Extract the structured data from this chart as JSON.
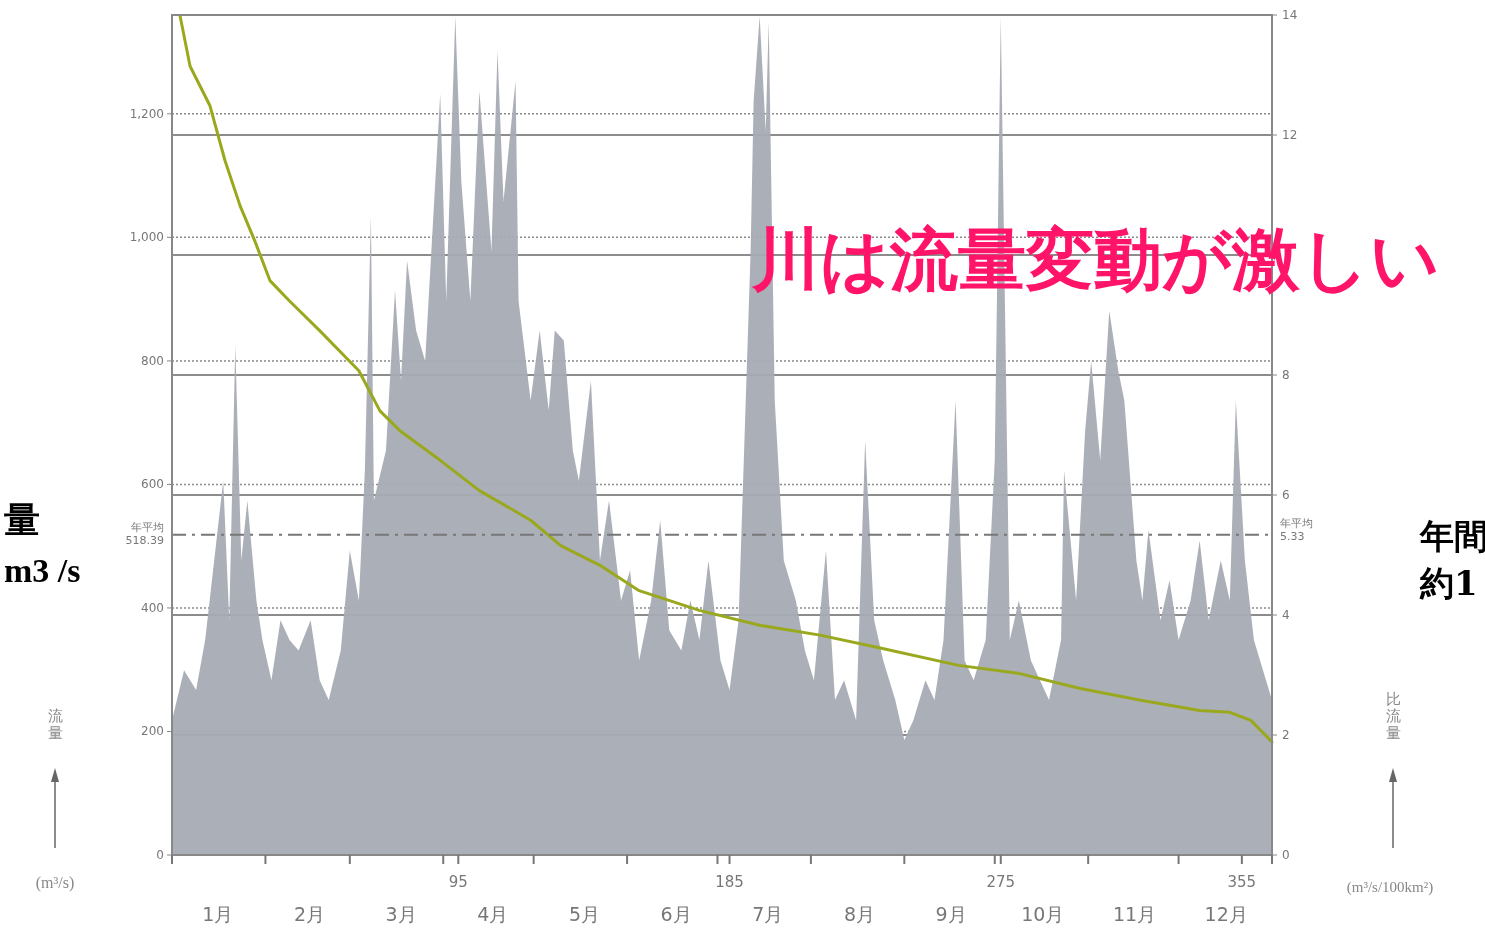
{
  "chart_data": {
    "type": "area",
    "title": "川は流量変動が激しい",
    "ylabel": "流量",
    "annotations": [
      "(m³/s)",
      "(m³/s/100km²)",
      "量",
      "m3 /s",
      "年間",
      "約1",
      "年平均 5.33",
      "比流量"
    ],
    "xlim": [
      0,
      365
    ],
    "xticks": [
      {
        "value": 0,
        "label": null
      },
      {
        "value": 31,
        "label": null
      },
      {
        "value": 59,
        "label": null
      },
      {
        "value": 90,
        "label": null
      },
      {
        "value": 120,
        "label": null
      },
      {
        "value": 151,
        "label": null
      },
      {
        "value": 181,
        "label": null
      },
      {
        "value": 212,
        "label": null
      },
      {
        "value": 243,
        "label": null
      },
      {
        "value": 273,
        "label": null
      },
      {
        "value": 304,
        "label": null
      },
      {
        "value": 334,
        "label": null
      },
      {
        "value": 365,
        "label": null
      },
      {
        "value": 95,
        "label": "95"
      },
      {
        "value": 185,
        "label": "185"
      },
      {
        "value": 275,
        "label": "275"
      },
      {
        "value": 355,
        "label": "355"
      }
    ],
    "x2lim": [
      0.5,
      12.5
    ],
    "x2ticks": [
      {
        "value": 1,
        "label": "1月"
      },
      {
        "value": 2,
        "label": "2月"
      },
      {
        "value": 3,
        "label": "3月"
      },
      {
        "value": 4,
        "label": "4月"
      },
      {
        "value": 5,
        "label": "5月"
      },
      {
        "value": 6,
        "label": "6月"
      },
      {
        "value": 7,
        "label": "7月"
      },
      {
        "value": 8,
        "label": "8月"
      },
      {
        "value": 9,
        "label": "9月"
      },
      {
        "value": 10,
        "label": "10月"
      },
      {
        "value": 11,
        "label": "11月"
      },
      {
        "value": 12,
        "label": "12月"
      }
    ],
    "ylim": [
      0,
      1360
    ],
    "yticks": [
      0,
      200,
      400,
      600,
      800,
      {
        "value": 1000,
        "label": "1,000"
      },
      {
        "value": 1200,
        "label": "1,200"
      }
    ],
    "y2lim": [
      0,
      14
    ],
    "y2ticks": [
      0,
      2,
      4,
      6,
      8,
      {
        "value": 10,
        "label": null
      },
      12,
      14
    ],
    "grid": "y",
    "ref_lines": [
      {
        "axis": "y",
        "value": 518.39,
        "label": "年平均 518.39",
        "line_style": "dashed",
        "color": "#777777"
      }
    ],
    "series": [
      {
        "type": "area",
        "color": "#a7abb3",
        "x": [
          0,
          4,
          8,
          11,
          14,
          17,
          19,
          21,
          23,
          25,
          28,
          30,
          33,
          36,
          39,
          42,
          46,
          49,
          52,
          56,
          59,
          62,
          64,
          66,
          67,
          71,
          74,
          76,
          78,
          81,
          84,
          87,
          89,
          91,
          94,
          96,
          99,
          102,
          106,
          108,
          110,
          114,
          115,
          119,
          122,
          125,
          127,
          130,
          133,
          135,
          139,
          142,
          145,
          149,
          152,
          155,
          159,
          162,
          165,
          169,
          172,
          175,
          178,
          182,
          185,
          188,
          192,
          193,
          195,
          197,
          198,
          200,
          203,
          207,
          210,
          213,
          217,
          220,
          223,
          227,
          230,
          233,
          236,
          240,
          243,
          246,
          250,
          253,
          256,
          260,
          263,
          266,
          270,
          273,
          275,
          278,
          281,
          285,
          288,
          291,
          295,
          296,
          300,
          303,
          305,
          308,
          311,
          314,
          316,
          320,
          322,
          324,
          328,
          331,
          334,
          338,
          341,
          344,
          348,
          351,
          353,
          356,
          359,
          363,
          365
        ],
        "values": [
          218,
          299,
          267,
          348,
          477,
          606,
          380,
          825,
          477,
          574,
          412,
          348,
          283,
          380,
          348,
          331,
          380,
          283,
          251,
          331,
          493,
          412,
          623,
          1035,
          574,
          655,
          914,
          768,
          962,
          849,
          800,
          1059,
          1232,
          897,
          1358,
          1091,
          897,
          1237,
          978,
          1302,
          1059,
          1253,
          897,
          736,
          849,
          720,
          849,
          833,
          655,
          606,
          768,
          477,
          574,
          412,
          461,
          315,
          412,
          542,
          364,
          331,
          412,
          348,
          477,
          315,
          267,
          380,
          978,
          1221,
          1358,
          1172,
          1350,
          736,
          477,
          412,
          331,
          283,
          493,
          251,
          283,
          218,
          671,
          380,
          315,
          251,
          186,
          218,
          283,
          251,
          348,
          736,
          315,
          283,
          348,
          639,
          1358,
          348,
          412,
          315,
          283,
          251,
          348,
          623,
          412,
          687,
          800,
          639,
          881,
          784,
          736,
          477,
          412,
          526,
          380,
          445,
          348,
          412,
          509,
          380,
          477,
          412,
          736,
          477,
          348,
          283,
          251
        ]
      },
      {
        "type": "line",
        "color": "#9aa81e",
        "x": [
          2.7,
          6,
          12.6,
          17.6,
          22.6,
          27.5,
          32.5,
          39,
          49,
          62,
          69,
          75.6,
          89,
          102,
          119,
          129,
          142,
          155,
          175,
          195,
          215,
          235,
          261,
          281,
          301,
          321,
          341,
          351,
          358,
          365
        ],
        "values": [
          1358,
          1277,
          1213,
          1124,
          1051,
          994,
          930,
          897,
          849,
          784,
          719,
          687,
          639,
          590,
          542,
          501,
          469,
          428,
          396,
          372,
          356,
          335,
          307,
          294,
          270,
          251,
          234,
          231,
          218,
          183
        ]
      }
    ]
  }
}
